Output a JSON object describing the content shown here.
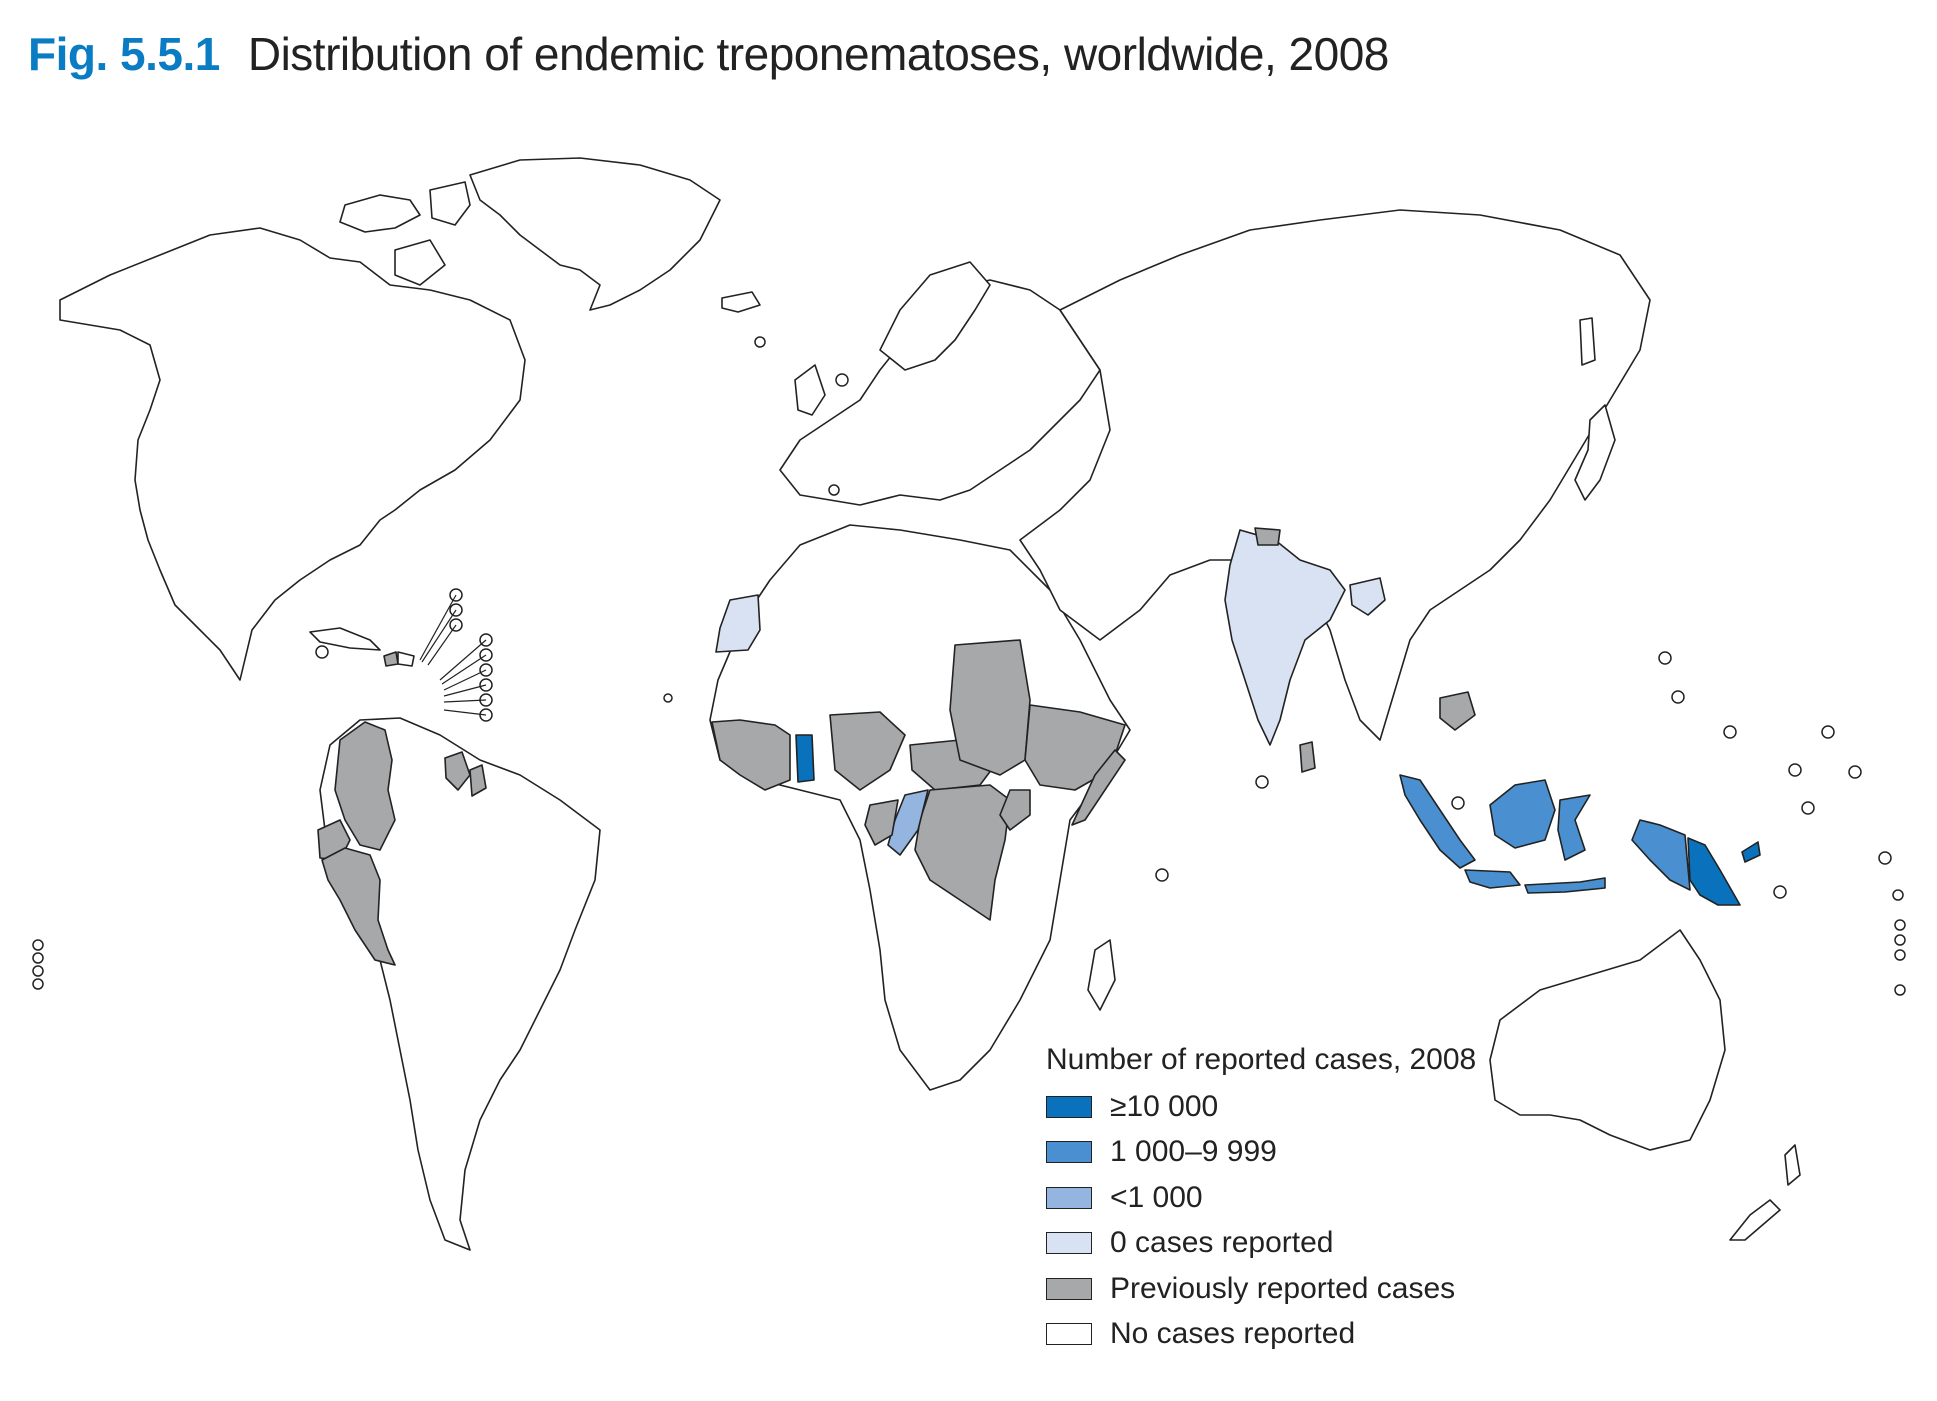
{
  "figure": {
    "number": "Fig. 5.5.1",
    "title": "Distribution of endemic treponematoses, worldwide, 2008"
  },
  "legend": {
    "title": "Number of reported cases, 2008",
    "items": [
      {
        "key": "c10000",
        "label": "≥10 000",
        "color": "#0a72bd"
      },
      {
        "key": "c1000",
        "label": "1 000–9 999",
        "color": "#4a90d0"
      },
      {
        "key": "c1",
        "label": "<1 000",
        "color": "#93b5e0"
      },
      {
        "key": "zero",
        "label": "0 cases reported",
        "color": "#d8e2f2"
      },
      {
        "key": "prev",
        "label": "Previously reported cases",
        "color": "#a7a8aa"
      },
      {
        "key": "none",
        "label": "No cases reported",
        "color": "#ffffff"
      }
    ]
  },
  "map": {
    "ocean_color": "#ffffff",
    "border_color": "#222222",
    "regions": [
      {
        "name": "Ghana",
        "category": "c10000"
      },
      {
        "name": "Papua New Guinea",
        "category": "c10000"
      },
      {
        "name": "Indonesia",
        "category": "c1000"
      },
      {
        "name": "Timor-Leste",
        "category": "c1000"
      },
      {
        "name": "Republic of the Congo",
        "category": "c1"
      },
      {
        "name": "India",
        "category": "zero"
      },
      {
        "name": "Bangladesh",
        "category": "zero"
      },
      {
        "name": "Western Sahara",
        "category": "zero"
      },
      {
        "name": "Nepal",
        "category": "prev"
      },
      {
        "name": "Colombia",
        "category": "prev"
      },
      {
        "name": "Ecuador",
        "category": "prev"
      },
      {
        "name": "Peru",
        "category": "prev"
      },
      {
        "name": "Guyana",
        "category": "prev"
      },
      {
        "name": "Suriname",
        "category": "prev"
      },
      {
        "name": "Haiti",
        "category": "prev"
      },
      {
        "name": "Senegal",
        "category": "prev"
      },
      {
        "name": "Gambia",
        "category": "prev"
      },
      {
        "name": "Guinea-Bissau",
        "category": "prev"
      },
      {
        "name": "Guinea",
        "category": "prev"
      },
      {
        "name": "Sierra Leone",
        "category": "prev"
      },
      {
        "name": "Liberia",
        "category": "prev"
      },
      {
        "name": "Côte d'Ivoire",
        "category": "prev"
      },
      {
        "name": "Togo",
        "category": "prev"
      },
      {
        "name": "Benin",
        "category": "prev"
      },
      {
        "name": "Nigeria",
        "category": "prev"
      },
      {
        "name": "Cameroon",
        "category": "prev"
      },
      {
        "name": "Central African Republic",
        "category": "prev"
      },
      {
        "name": "Gabon",
        "category": "prev"
      },
      {
        "name": "Democratic Republic of the Congo",
        "category": "prev"
      },
      {
        "name": "Sudan",
        "category": "prev"
      },
      {
        "name": "Ethiopia",
        "category": "prev"
      },
      {
        "name": "Somalia",
        "category": "prev"
      },
      {
        "name": "Uganda",
        "category": "prev"
      },
      {
        "name": "Rwanda",
        "category": "prev"
      },
      {
        "name": "Cambodia",
        "category": "prev"
      }
    ]
  }
}
